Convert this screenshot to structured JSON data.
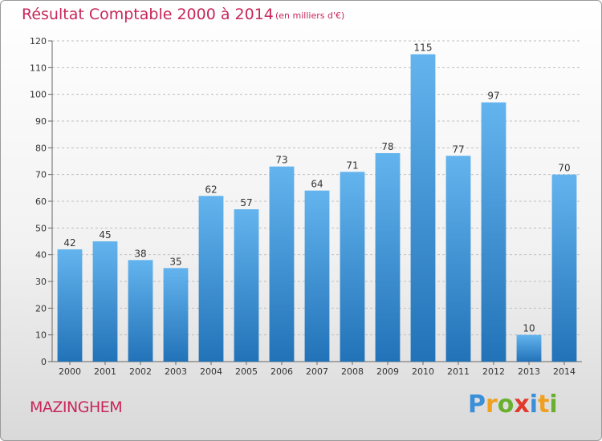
{
  "title": "Résultat Comptable 2000 à 2014",
  "subtitle": "(en milliers d'€)",
  "commune": "MAZINGHEM",
  "logo_text": "Proxiti",
  "colors": {
    "title": "#c8265a",
    "bar_top": "#63b4ee",
    "bar_bottom": "#2272b8",
    "grid": "#c0c0c0"
  },
  "chart_data": {
    "type": "bar",
    "title": "Résultat Comptable 2000 à 2014",
    "subtitle": "(en milliers d'€)",
    "categories": [
      "2000",
      "2001",
      "2002",
      "2003",
      "2004",
      "2005",
      "2006",
      "2007",
      "2008",
      "2009",
      "2010",
      "2011",
      "2012",
      "2013",
      "2014"
    ],
    "values": [
      42,
      45,
      38,
      35,
      62,
      57,
      73,
      64,
      71,
      78,
      115,
      77,
      97,
      10,
      70
    ],
    "ylim": [
      0,
      120
    ],
    "yticks": [
      0,
      10,
      20,
      30,
      40,
      50,
      60,
      70,
      80,
      90,
      100,
      110,
      120
    ],
    "grid": "dashed horizontal",
    "legend": "none"
  }
}
